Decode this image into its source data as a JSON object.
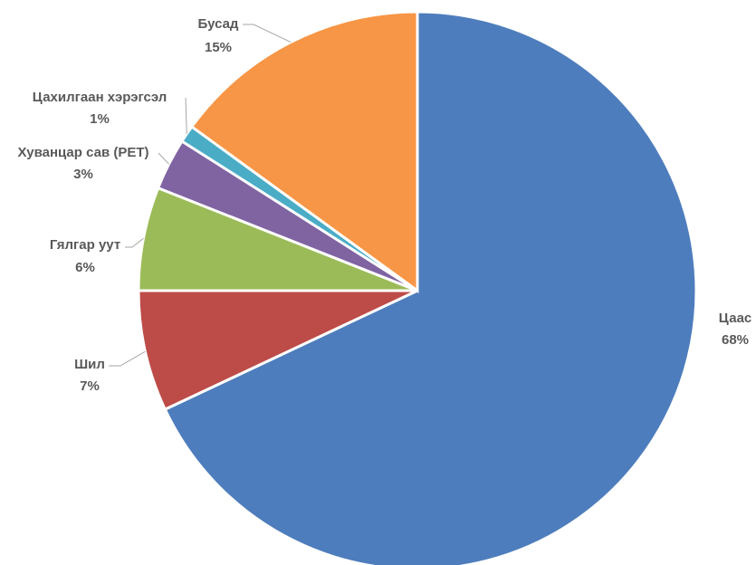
{
  "chart_data": {
    "type": "pie",
    "title": "",
    "slices": [
      {
        "label": "Цаас",
        "value": 68,
        "value_label": "68%",
        "color": "#4e7dbd"
      },
      {
        "label": "Шил",
        "value": 7,
        "value_label": "7%",
        "color": "#bd4b48"
      },
      {
        "label": "Гялгар уут",
        "value": 6,
        "value_label": "6%",
        "color": "#9bbb58"
      },
      {
        "label": "Хуванцар сав (PET)",
        "value": 3,
        "value_label": "3%",
        "color": "#8064a2"
      },
      {
        "label": "Цахилгаан хэрэгсэл",
        "value": 1,
        "value_label": "1%",
        "color": "#4bacc6"
      },
      {
        "label": "Бусад",
        "value": 15,
        "value_label": "15%",
        "color": "#f79646"
      }
    ],
    "start_angle_deg": 0,
    "direction": "clockwise",
    "legend": "none"
  }
}
